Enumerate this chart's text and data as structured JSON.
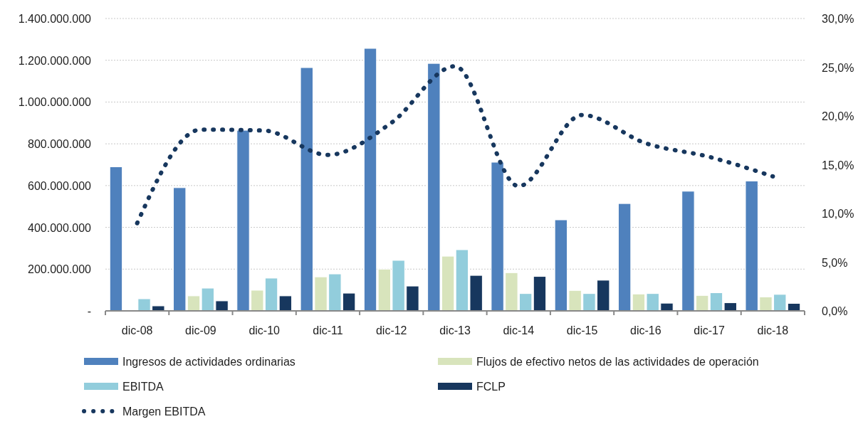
{
  "chart_data": {
    "type": "bar",
    "categories": [
      "dic-08",
      "dic-09",
      "dic-10",
      "dic-11",
      "dic-12",
      "dic-13",
      "dic-14",
      "dic-15",
      "dic-16",
      "dic-17",
      "dic-18"
    ],
    "series": [
      {
        "name": "Ingresos de actividades ordinarias",
        "color": "#4f81bd",
        "values": [
          690000000,
          590000000,
          865000000,
          1165000000,
          1257000000,
          1185000000,
          712000000,
          436000000,
          514000000,
          573000000,
          622000000
        ]
      },
      {
        "name": "Flujos de efectivo netos de las actividades de operación",
        "color": "#d8e4bc",
        "values": [
          null,
          72000000,
          99000000,
          163000000,
          200000000,
          262000000,
          183000000,
          98000000,
          81000000,
          74000000,
          67000000
        ]
      },
      {
        "name": "EBITDA",
        "color": "#92cddc",
        "values": [
          58000000,
          109000000,
          157000000,
          177000000,
          242000000,
          293000000,
          83000000,
          83000000,
          83000000,
          87000000,
          79000000
        ]
      },
      {
        "name": "FCLP",
        "color": "#17375e",
        "values": [
          24000000,
          48000000,
          72000000,
          85000000,
          119000000,
          170000000,
          165000000,
          147000000,
          37000000,
          39000000,
          36000000
        ]
      },
      {
        "name": "Margen EBITDA",
        "type": "line",
        "axis": "y2",
        "color": "#17375e",
        "line_style": "dotted",
        "marker": "none",
        "values": [
          9.0,
          18.6,
          18.5,
          16.0,
          19.3,
          25.1,
          12.8,
          20.1,
          17.2,
          15.8,
          13.8
        ]
      }
    ],
    "ylim": [
      0,
      1400000000
    ],
    "yticks": [
      {
        "value": 0,
        "label": "-"
      },
      {
        "value": 200000000,
        "label": "200.000.000"
      },
      {
        "value": 400000000,
        "label": "400.000.000"
      },
      {
        "value": 600000000,
        "label": "600.000.000"
      },
      {
        "value": 800000000,
        "label": "800.000.000"
      },
      {
        "value": 1000000000,
        "label": "1.000.000.000"
      },
      {
        "value": 1200000000,
        "label": "1.200.000.000"
      },
      {
        "value": 1400000000,
        "label": "1.400.000.000"
      }
    ],
    "y2lim": [
      0,
      30
    ],
    "y2ticks": [
      {
        "value": 0,
        "label": "0,0%"
      },
      {
        "value": 5,
        "label": "5,0%"
      },
      {
        "value": 10,
        "label": "10,0%"
      },
      {
        "value": 15,
        "label": "15,0%"
      },
      {
        "value": 20,
        "label": "20,0%"
      },
      {
        "value": 25,
        "label": "25,0%"
      },
      {
        "value": 30,
        "label": "30,0%"
      }
    ],
    "grid": "y",
    "legend": "bottom"
  }
}
